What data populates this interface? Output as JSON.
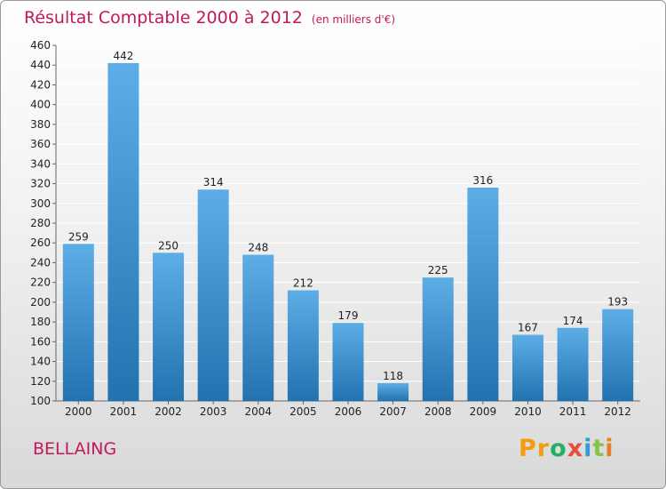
{
  "chart_data": {
    "type": "bar",
    "title": "Résultat Comptable 2000 à 2012",
    "subtitle": "(en milliers d'€)",
    "categories": [
      "2000",
      "2001",
      "2002",
      "2003",
      "2004",
      "2005",
      "2006",
      "2007",
      "2008",
      "2009",
      "2010",
      "2011",
      "2012"
    ],
    "values": [
      259,
      442,
      250,
      314,
      248,
      212,
      179,
      118,
      225,
      316,
      167,
      174,
      193
    ],
    "ylim": [
      100,
      460
    ],
    "yticks": [
      100,
      120,
      140,
      160,
      180,
      200,
      220,
      240,
      260,
      280,
      300,
      320,
      340,
      360,
      380,
      400,
      420,
      440,
      460
    ],
    "grid": true,
    "bar_color_light": "#5dade6",
    "bar_color_dark": "#2272b0"
  },
  "footer": {
    "place": "BELLAING",
    "logo": [
      "P",
      "r",
      "o",
      "x",
      "i",
      "t",
      "i"
    ],
    "logo_colors": [
      "#f39c12",
      "#f39c12",
      "#27ae60",
      "#e74c3c",
      "#3498db",
      "#8bc34a",
      "#e67e22"
    ]
  }
}
